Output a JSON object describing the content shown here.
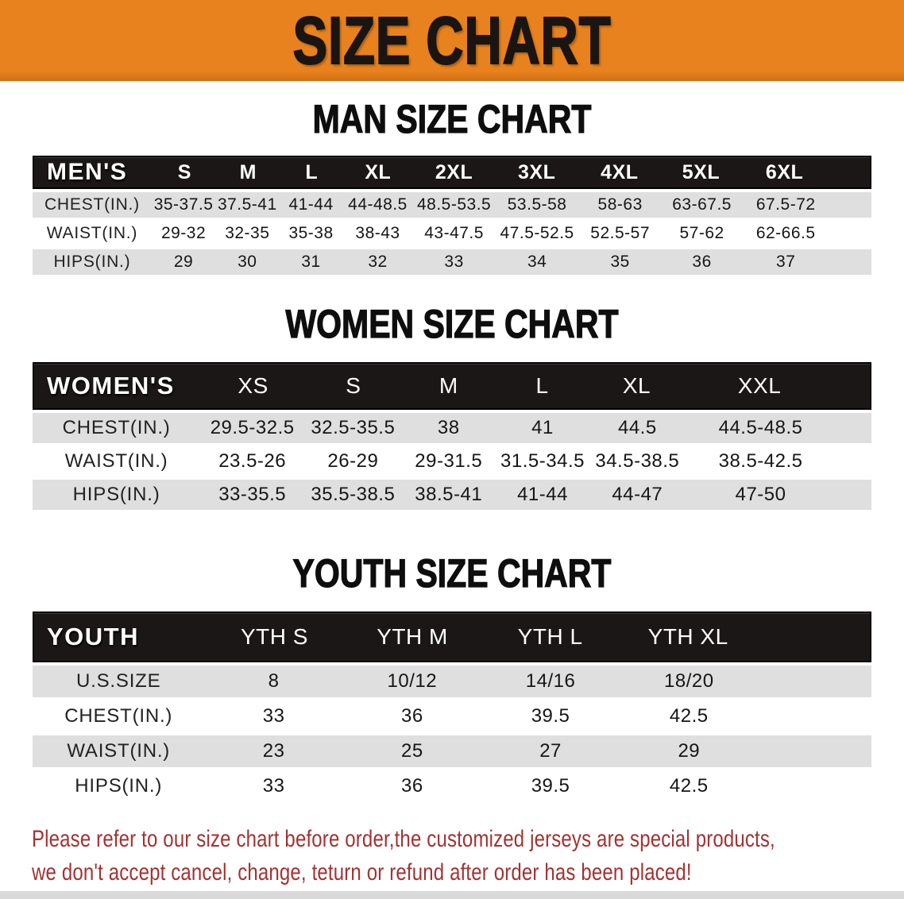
{
  "colors": {
    "banner-bg": "#E8821E",
    "bar-bg": "#1B1717",
    "row-gray": "#E0DFDF",
    "disclaimer-color": "#A23232"
  },
  "banner": {
    "title": "SIZE CHART"
  },
  "sections": [
    {
      "id": "men",
      "title": "MAN SIZE CHART",
      "table": {
        "label": "MEN'S",
        "sizes": [
          "S",
          "M",
          "L",
          "XL",
          "2XL",
          "3XL",
          "4XL",
          "5XL",
          "6XL"
        ],
        "rows": [
          {
            "label": "CHEST(IN.)",
            "values": [
              "35-37.5",
              "37.5-41",
              "41-44",
              "44-48.5",
              "48.5-53.5",
              "53.5-58",
              "58-63",
              "63-67.5",
              "67.5-72"
            ]
          },
          {
            "label": "WAIST(IN.)",
            "values": [
              "29-32",
              "32-35",
              "35-38",
              "38-43",
              "43-47.5",
              "47.5-52.5",
              "52.5-57",
              "57-62",
              "62-66.5"
            ]
          },
          {
            "label": "HIPS(IN.)",
            "values": [
              "29",
              "30",
              "31",
              "32",
              "33",
              "34",
              "35",
              "36",
              "37"
            ]
          }
        ]
      }
    },
    {
      "id": "women",
      "title": "WOMEN SIZE CHART",
      "table": {
        "label": "WOMEN'S",
        "sizes": [
          "XS",
          "S",
          "M",
          "L",
          "XL",
          "XXL"
        ],
        "rows": [
          {
            "label": "CHEST(IN.)",
            "values": [
              "29.5-32.5",
              "32.5-35.5",
              "38",
              "41",
              "44.5",
              "44.5-48.5"
            ]
          },
          {
            "label": "WAIST(IN.)",
            "values": [
              "23.5-26",
              "26-29",
              "29-31.5",
              "31.5-34.5",
              "34.5-38.5",
              "38.5-42.5"
            ]
          },
          {
            "label": "HIPS(IN.)",
            "values": [
              "33-35.5",
              "35.5-38.5",
              "38.5-41",
              "41-44",
              "44-47",
              "47-50"
            ]
          }
        ]
      }
    },
    {
      "id": "youth",
      "title": "YOUTH SIZE CHART",
      "table": {
        "label": "YOUTH",
        "sizes": [
          "YTH S",
          "YTH M",
          "YTH L",
          "YTH XL"
        ],
        "rows": [
          {
            "label": "U.S.SIZE",
            "values": [
              "8",
              "10/12",
              "14/16",
              "18/20"
            ]
          },
          {
            "label": "CHEST(IN.)",
            "values": [
              "33",
              "36",
              "39.5",
              "42.5"
            ]
          },
          {
            "label": "WAIST(IN.)",
            "values": [
              "23",
              "25",
              "27",
              "29"
            ]
          },
          {
            "label": "HIPS(IN.)",
            "values": [
              "33",
              "36",
              "39.5",
              "42.5"
            ]
          }
        ]
      }
    }
  ],
  "disclaimer": {
    "line1": "Please refer to our size chart before order,the customized jerseys are special products,",
    "line2": "we don't accept cancel, change, teturn or refund after order has been placed!"
  }
}
